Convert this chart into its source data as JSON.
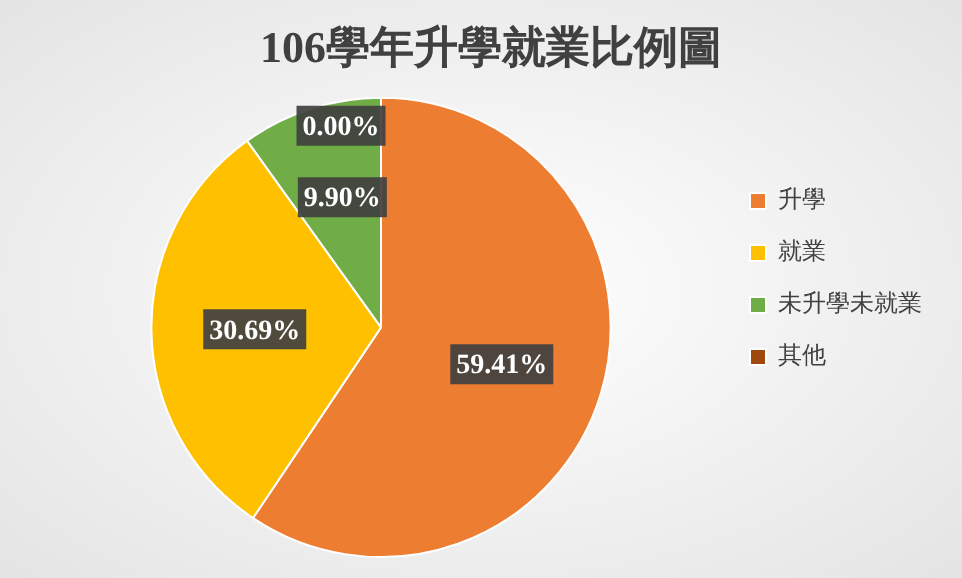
{
  "chart_data": {
    "type": "pie",
    "title": "106學年升學就業比例圖",
    "categories": [
      "升學",
      "就業",
      "未升學未就業",
      "其他"
    ],
    "values": [
      59.41,
      30.69,
      9.9,
      0.0
    ],
    "colors": [
      "#ed7d31",
      "#ffc000",
      "#70ad47",
      "#9e480e"
    ],
    "value_labels": [
      "59.41%",
      "30.69%",
      "9.90%",
      "0.00%"
    ],
    "legend": "right"
  }
}
